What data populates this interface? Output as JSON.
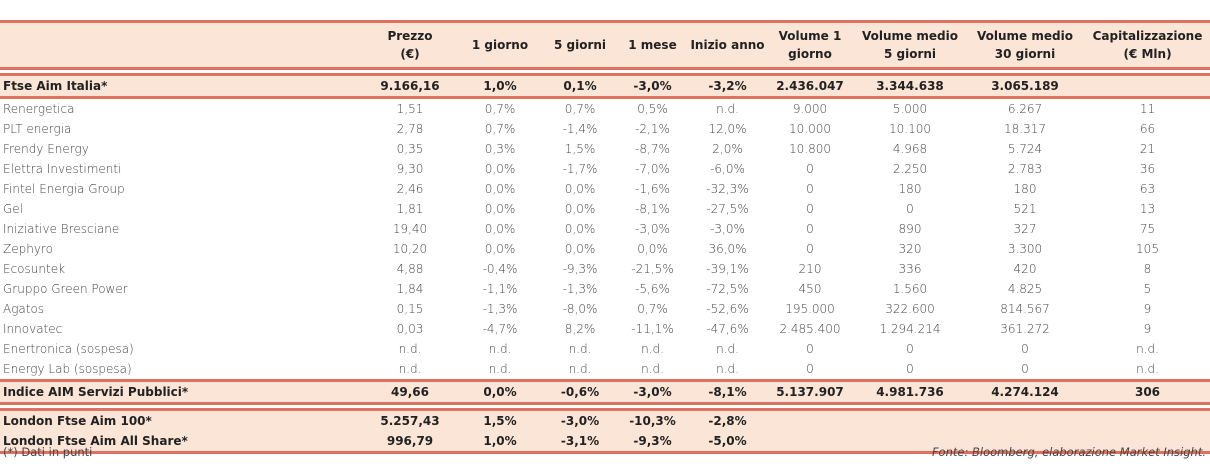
{
  "columns": [
    "",
    "Prezzo\n(€)",
    "1 giorno",
    "5 giorni",
    "1 mese",
    "Inizio anno",
    "Volume 1\ngiorno",
    "Volume medio\n5 giorni",
    "Volume medio\n30 giorni",
    "Capitalizzazione\n(€ Mln)"
  ],
  "index_row": [
    "Ftse Aim Italia*",
    "9.166,16",
    "1,0%",
    "0,1%",
    "-3,0%",
    "-3,2%",
    "2.436.047",
    "3.344.638",
    "3.065.189",
    ""
  ],
  "rows": [
    [
      "Renergetica",
      "1,51",
      "0,7%",
      "0,7%",
      "0,5%",
      "n.d.",
      "9.000",
      "5.000",
      "6.267",
      "11"
    ],
    [
      "PLT energia",
      "2,78",
      "0,7%",
      "-1,4%",
      "-2,1%",
      "12,0%",
      "10.000",
      "10.100",
      "18.317",
      "66"
    ],
    [
      "Frendy Energy",
      "0,35",
      "0,3%",
      "1,5%",
      "-8,7%",
      "2,0%",
      "10.800",
      "4.968",
      "5.724",
      "21"
    ],
    [
      "Elettra Investimenti",
      "9,30",
      "0,0%",
      "-1,7%",
      "-7,0%",
      "-6,0%",
      "0",
      "2.250",
      "2.783",
      "36"
    ],
    [
      "Fintel Energia Group",
      "2,46",
      "0,0%",
      "0,0%",
      "-1,6%",
      "-32,3%",
      "0",
      "180",
      "180",
      "63"
    ],
    [
      "Gel",
      "1,81",
      "0,0%",
      "0,0%",
      "-8,1%",
      "-27,5%",
      "0",
      "0",
      "521",
      "13"
    ],
    [
      "Iniziative Bresciane",
      "19,40",
      "0,0%",
      "0,0%",
      "-3,0%",
      "-3,0%",
      "0",
      "890",
      "327",
      "75"
    ],
    [
      "Zephyro",
      "10,20",
      "0,0%",
      "0,0%",
      "0,0%",
      "36,0%",
      "0",
      "320",
      "3.300",
      "105"
    ],
    [
      "Ecosuntek",
      "4,88",
      "-0,4%",
      "-9,3%",
      "-21,5%",
      "-39,1%",
      "210",
      "336",
      "420",
      "8"
    ],
    [
      "Gruppo Green Power",
      "1,84",
      "-1,1%",
      "-1,3%",
      "-5,6%",
      "-72,5%",
      "450",
      "1.560",
      "4.825",
      "5"
    ],
    [
      "Agatos",
      "0,15",
      "-1,3%",
      "-8,0%",
      "0,7%",
      "-52,6%",
      "195.000",
      "322.600",
      "814.567",
      "9"
    ],
    [
      "Innovatec",
      "0,03",
      "-4,7%",
      "8,2%",
      "-11,1%",
      "-47,6%",
      "2.485.400",
      "1.294.214",
      "361.272",
      "9"
    ],
    [
      "Enertronica (sospesa)",
      "n.d.",
      "n.d.",
      "n.d.",
      "n.d.",
      "n.d.",
      "0",
      "0",
      "0",
      "n.d."
    ],
    [
      "Energy Lab (sospesa)",
      "n.d.",
      "n.d.",
      "n.d.",
      "n.d.",
      "n.d.",
      "0",
      "0",
      "0",
      "n.d."
    ]
  ],
  "sector_row": [
    "Indice AIM Servizi Pubblici*",
    "49,66",
    "0,0%",
    "-0,6%",
    "-3,0%",
    "-8,1%",
    "5.137.907",
    "4.981.736",
    "4.274.124",
    "306"
  ],
  "london_rows": [
    [
      "London Ftse Aim 100*",
      "5.257,43",
      "1,5%",
      "-3,0%",
      "-10,3%",
      "-2,8%",
      "",
      "",
      "",
      ""
    ],
    [
      "London Ftse Aim All Share*",
      "996,79",
      "1,0%",
      "-3,1%",
      "-9,3%",
      "-5,0%",
      "",
      "",
      "",
      ""
    ]
  ],
  "footnote": "(*) Dati in punti",
  "source": "Fonte: Bloomberg, elaborazione Market Insight.",
  "colors": {
    "accent": "#e07060",
    "band": "#fbe5d6"
  }
}
